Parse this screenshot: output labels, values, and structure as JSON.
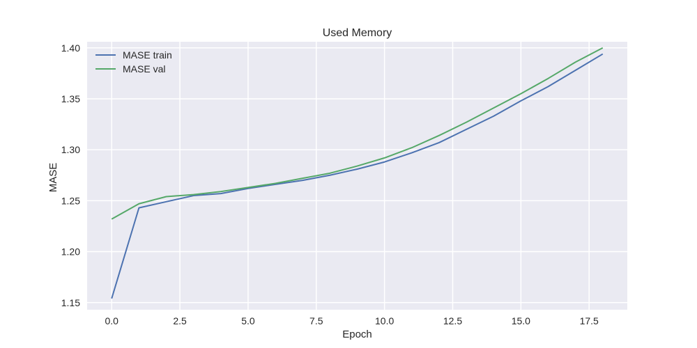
{
  "chart_data": {
    "type": "line",
    "title": "Used Memory",
    "xlabel": "Epoch",
    "ylabel": "MASE",
    "xlim": [
      -0.9,
      18.9
    ],
    "ylim": [
      1.143,
      1.406
    ],
    "xticks": [
      0.0,
      2.5,
      5.0,
      7.5,
      10.0,
      12.5,
      15.0,
      17.5
    ],
    "xtick_labels": [
      "0.0",
      "2.5",
      "5.0",
      "7.5",
      "10.0",
      "12.5",
      "15.0",
      "17.5"
    ],
    "yticks": [
      1.15,
      1.2,
      1.25,
      1.3,
      1.35,
      1.4
    ],
    "ytick_labels": [
      "1.15",
      "1.20",
      "1.25",
      "1.30",
      "1.35",
      "1.40"
    ],
    "grid": true,
    "legend_position": "upper-left",
    "x": [
      0,
      1,
      2,
      3,
      4,
      5,
      6,
      7,
      8,
      9,
      10,
      11,
      12,
      13,
      14,
      15,
      16,
      17,
      18
    ],
    "series": [
      {
        "name": "MASE train",
        "color": "#4c72b0",
        "values": [
          1.154,
          1.243,
          1.249,
          1.255,
          1.257,
          1.262,
          1.266,
          1.27,
          1.275,
          1.281,
          1.288,
          1.297,
          1.307,
          1.32,
          1.333,
          1.348,
          1.362,
          1.378,
          1.394
        ]
      },
      {
        "name": "MASE val",
        "color": "#55a868",
        "values": [
          1.232,
          1.247,
          1.254,
          1.256,
          1.259,
          1.263,
          1.267,
          1.272,
          1.277,
          1.284,
          1.292,
          1.302,
          1.314,
          1.327,
          1.341,
          1.355,
          1.37,
          1.386,
          1.4
        ]
      }
    ],
    "background": "#eaeaf2",
    "grid_color": "#ffffff"
  }
}
